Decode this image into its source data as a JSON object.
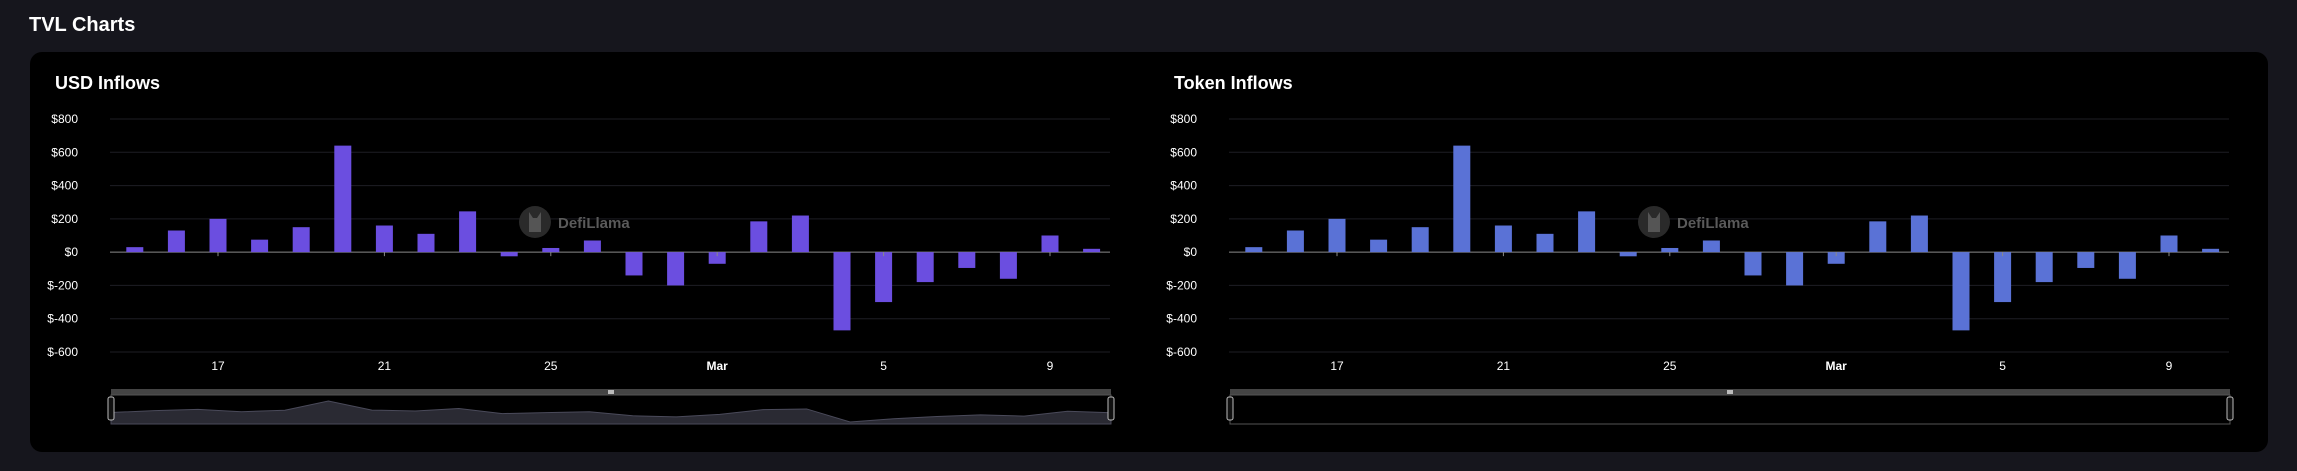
{
  "page": {
    "section_title": "TVL Charts"
  },
  "watermark": {
    "text": "DefiLlama",
    "icon": "llama-logo-icon"
  },
  "colors": {
    "page_bg": "#16161d",
    "panel_bg": "#000000",
    "usd_bar": "#6b4ee0",
    "token_bar": "#5a72d6",
    "grid": "#1e1e24",
    "slider_track": "#2a2a33"
  },
  "chart_data": [
    {
      "type": "bar",
      "title": "USD Inflows",
      "xlabel": "",
      "ylabel": "",
      "ylim": [
        -600,
        800
      ],
      "yticks": [
        800,
        600,
        400,
        200,
        0,
        -200,
        -400,
        -600
      ],
      "ytick_labels": [
        "$800",
        "$600",
        "$400",
        "$200",
        "$0",
        "$-200",
        "$-400",
        "$-600"
      ],
      "xtick_labels": [
        "17",
        "21",
        "25",
        "Mar",
        "5",
        "9"
      ],
      "xtick_positions": [
        2,
        6,
        10,
        14,
        18,
        22
      ],
      "grid": true,
      "legend": false,
      "values": [
        30,
        130,
        200,
        75,
        150,
        640,
        160,
        110,
        245,
        -25,
        25,
        70,
        -140,
        -200,
        -70,
        185,
        220,
        -470,
        -300,
        -180,
        -95,
        -160,
        100,
        20
      ]
    },
    {
      "type": "bar",
      "title": "Token Inflows",
      "xlabel": "",
      "ylabel": "",
      "ylim": [
        -600,
        800
      ],
      "yticks": [
        800,
        600,
        400,
        200,
        0,
        -200,
        -400,
        -600
      ],
      "ytick_labels": [
        "$800",
        "$600",
        "$400",
        "$200",
        "$0",
        "$-200",
        "$-400",
        "$-600"
      ],
      "xtick_labels": [
        "17",
        "21",
        "25",
        "Mar",
        "5",
        "9"
      ],
      "xtick_positions": [
        2,
        6,
        10,
        14,
        18,
        22
      ],
      "grid": true,
      "legend": false,
      "values": [
        30,
        130,
        200,
        75,
        150,
        640,
        160,
        110,
        245,
        -25,
        25,
        70,
        -140,
        -200,
        -70,
        185,
        220,
        -470,
        -300,
        -180,
        -95,
        -160,
        100,
        20
      ]
    }
  ]
}
